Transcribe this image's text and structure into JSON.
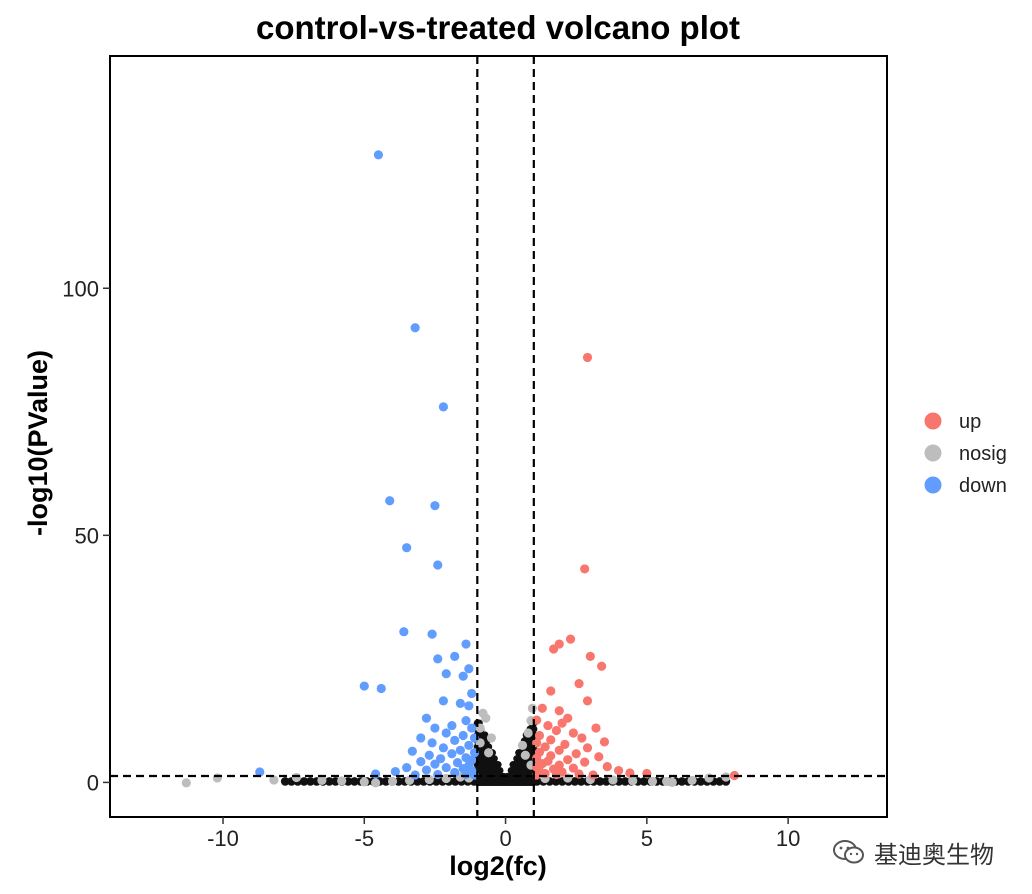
{
  "chart_data": {
    "type": "scatter",
    "title": "control-vs-treated volcano plot",
    "xlabel": "log2(fc)",
    "ylabel": "-log10(PValue)",
    "xlim": [
      -14,
      13.5
    ],
    "ylim": [
      -7,
      147
    ],
    "x_ticks": [
      -10,
      -5,
      0,
      5,
      10
    ],
    "y_ticks": [
      0,
      50,
      100
    ],
    "thresholds": {
      "log2fc": [
        -1,
        1
      ],
      "neg_log10_p": 1.3
    },
    "grid": false,
    "legend_position": "right",
    "colors": {
      "up": "#f8766d",
      "nosig": "#bdbdbd",
      "down": "#619cff",
      "dense": "#111111"
    },
    "series": [
      {
        "name": "up",
        "points": [
          [
            2.9,
            86
          ],
          [
            2.8,
            43.2
          ],
          [
            2.3,
            29
          ],
          [
            1.9,
            28
          ],
          [
            1.7,
            27
          ],
          [
            3.0,
            25.5
          ],
          [
            3.4,
            23.5
          ],
          [
            2.6,
            20
          ],
          [
            1.6,
            18.5
          ],
          [
            2.9,
            16.5
          ],
          [
            1.3,
            15
          ],
          [
            1.9,
            14.5
          ],
          [
            2.2,
            13
          ],
          [
            1.1,
            12.6
          ],
          [
            2.0,
            12
          ],
          [
            1.5,
            11.5
          ],
          [
            3.2,
            11
          ],
          [
            1.8,
            10.5
          ],
          [
            2.4,
            10
          ],
          [
            1.2,
            9.5
          ],
          [
            2.7,
            9
          ],
          [
            1.6,
            8.6
          ],
          [
            3.5,
            8.2
          ],
          [
            1.1,
            8
          ],
          [
            2.1,
            7.7
          ],
          [
            1.4,
            7.2
          ],
          [
            2.9,
            7
          ],
          [
            1.9,
            6.5
          ],
          [
            1.2,
            6.1
          ],
          [
            2.5,
            5.8
          ],
          [
            1.6,
            5.4
          ],
          [
            3.3,
            5.2
          ],
          [
            1.1,
            4.9
          ],
          [
            2.2,
            4.6
          ],
          [
            1.5,
            4.3
          ],
          [
            2.8,
            4.1
          ],
          [
            1.3,
            3.8
          ],
          [
            1.9,
            3.5
          ],
          [
            3.6,
            3.2
          ],
          [
            1.1,
            3.1
          ],
          [
            2.4,
            2.9
          ],
          [
            1.7,
            2.7
          ],
          [
            4.0,
            2.4
          ],
          [
            1.2,
            2.3
          ],
          [
            2.0,
            2.1
          ],
          [
            4.4,
            1.9
          ],
          [
            1.4,
            1.8
          ],
          [
            5.0,
            1.8
          ],
          [
            2.6,
            1.7
          ],
          [
            1.8,
            1.6
          ],
          [
            3.1,
            1.5
          ],
          [
            8.1,
            1.4
          ],
          [
            1.1,
            1.5
          ]
        ]
      },
      {
        "name": "nosig",
        "points": [
          [
            -11.3,
            -0.1
          ],
          [
            -10.2,
            0.9
          ],
          [
            -8.2,
            0.5
          ],
          [
            -7.4,
            1.0
          ],
          [
            -6.5,
            0.4
          ],
          [
            -5.8,
            0.3
          ],
          [
            -5.0,
            0.1
          ],
          [
            -4.6,
            -0.1
          ],
          [
            -4.0,
            0.2
          ],
          [
            -3.4,
            0.4
          ],
          [
            -2.7,
            0.6
          ],
          [
            -2.1,
            0.8
          ],
          [
            -1.6,
            1.1
          ],
          [
            -1.3,
            0.9
          ],
          [
            -0.9,
            8
          ],
          [
            -0.9,
            11
          ],
          [
            -0.8,
            14
          ],
          [
            -0.7,
            13
          ],
          [
            -0.5,
            9
          ],
          [
            -0.6,
            6
          ],
          [
            0.6,
            7.5
          ],
          [
            0.8,
            10
          ],
          [
            0.9,
            12.5
          ],
          [
            0.95,
            15
          ],
          [
            0.7,
            5.5
          ],
          [
            0.9,
            3.5
          ],
          [
            1.4,
            0.8
          ],
          [
            2.2,
            0.9
          ],
          [
            3.0,
            0.6
          ],
          [
            3.8,
            0.5
          ],
          [
            4.5,
            0.3
          ],
          [
            5.2,
            0.2
          ],
          [
            5.7,
            0.2
          ],
          [
            5.9,
            0.0
          ],
          [
            6.6,
            0.4
          ],
          [
            7.2,
            0.9
          ],
          [
            7.8,
            1.1
          ]
        ]
      },
      {
        "name": "down",
        "points": [
          [
            -4.5,
            127
          ],
          [
            -3.2,
            92
          ],
          [
            -2.2,
            76
          ],
          [
            -4.1,
            57
          ],
          [
            -2.5,
            56
          ],
          [
            -3.5,
            47.5
          ],
          [
            -2.4,
            44
          ],
          [
            -3.6,
            30.5
          ],
          [
            -2.6,
            30
          ],
          [
            -1.4,
            28
          ],
          [
            -1.8,
            25.5
          ],
          [
            -2.4,
            25
          ],
          [
            -1.3,
            23
          ],
          [
            -2.1,
            22
          ],
          [
            -1.5,
            21.5
          ],
          [
            -5.0,
            19.5
          ],
          [
            -4.4,
            19
          ],
          [
            -1.2,
            18
          ],
          [
            -2.2,
            16.5
          ],
          [
            -1.6,
            16
          ],
          [
            -1.3,
            15.5
          ],
          [
            -2.8,
            13
          ],
          [
            -1.4,
            12.5
          ],
          [
            -1.9,
            11.5
          ],
          [
            -2.5,
            11
          ],
          [
            -1.2,
            11
          ],
          [
            -2.1,
            10
          ],
          [
            -1.5,
            9.5
          ],
          [
            -3.0,
            9
          ],
          [
            -1.1,
            9
          ],
          [
            -1.8,
            8.5
          ],
          [
            -2.6,
            8
          ],
          [
            -1.3,
            7.5
          ],
          [
            -2.2,
            7
          ],
          [
            -1.6,
            6.5
          ],
          [
            -3.3,
            6.3
          ],
          [
            -1.1,
            6
          ],
          [
            -1.9,
            5.8
          ],
          [
            -2.7,
            5.5
          ],
          [
            -1.4,
            5
          ],
          [
            -2.3,
            4.8
          ],
          [
            -1.2,
            4.5
          ],
          [
            -3.0,
            4.2
          ],
          [
            -1.7,
            4
          ],
          [
            -2.5,
            3.7
          ],
          [
            -1.3,
            3.4
          ],
          [
            -3.5,
            3
          ],
          [
            -2.1,
            3
          ],
          [
            -1.5,
            2.8
          ],
          [
            -2.8,
            2.5
          ],
          [
            -1.2,
            2.4
          ],
          [
            -3.9,
            2.2
          ],
          [
            -1.8,
            2
          ],
          [
            -8.7,
            2.1
          ],
          [
            -4.6,
            1.7
          ],
          [
            -2.4,
            1.6
          ],
          [
            -1.4,
            1.6
          ],
          [
            -3.2,
            1.5
          ],
          [
            -1.1,
            1.5
          ]
        ]
      }
    ]
  },
  "watermark": {
    "text": "基迪奥生物",
    "icon": "wechat-icon"
  }
}
